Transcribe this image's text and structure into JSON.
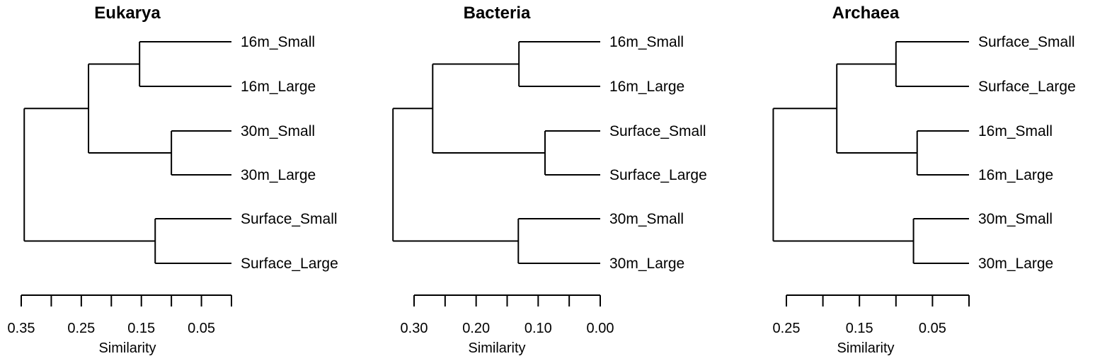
{
  "chart_data": [
    {
      "type": "dendrogram",
      "title": "Eukarya",
      "xlabel": "Similarity",
      "xlim": [
        0.35,
        0.0
      ],
      "ticks": [
        0.35,
        0.3,
        0.25,
        0.2,
        0.15,
        0.1,
        0.05,
        0.0
      ],
      "tick_labels": [
        "0.35",
        "0.25",
        "0.15",
        "0.05"
      ],
      "tick_label_values": [
        0.35,
        0.25,
        0.15,
        0.05
      ],
      "leaves": [
        "16m_Small",
        "16m_Large",
        "30m_Small",
        "30m_Large",
        "Surface_Small",
        "Surface_Large"
      ],
      "merges": [
        {
          "a": "L0",
          "b": "L1",
          "height": 0.153
        },
        {
          "a": "L2",
          "b": "L3",
          "height": 0.1
        },
        {
          "a": "L4",
          "b": "L5",
          "height": 0.127
        },
        {
          "a": "M0",
          "b": "M1",
          "height": 0.238
        },
        {
          "a": "M3",
          "b": "M2",
          "height": 0.345
        }
      ]
    },
    {
      "type": "dendrogram",
      "title": "Bacteria",
      "xlabel": "Similarity",
      "xlim": [
        0.3,
        0.0
      ],
      "ticks": [
        0.3,
        0.25,
        0.2,
        0.15,
        0.1,
        0.05,
        0.0
      ],
      "tick_labels": [
        "0.30",
        "0.20",
        "0.10",
        "0.00"
      ],
      "tick_label_values": [
        0.3,
        0.2,
        0.1,
        0.0
      ],
      "leaves": [
        "16m_Small",
        "16m_Large",
        "Surface_Small",
        "Surface_Large",
        "30m_Small",
        "30m_Large"
      ],
      "merges": [
        {
          "a": "L0",
          "b": "L1",
          "height": 0.131
        },
        {
          "a": "L2",
          "b": "L3",
          "height": 0.089
        },
        {
          "a": "L4",
          "b": "L5",
          "height": 0.132
        },
        {
          "a": "M0",
          "b": "M1",
          "height": 0.27
        },
        {
          "a": "M3",
          "b": "M2",
          "height": 0.334
        }
      ]
    },
    {
      "type": "dendrogram",
      "title": "Archaea",
      "xlabel": "Similarity",
      "xlim": [
        0.25,
        0.0
      ],
      "ticks": [
        0.25,
        0.2,
        0.15,
        0.1,
        0.05,
        0.0
      ],
      "tick_labels": [
        "0.25",
        "0.15",
        "0.05"
      ],
      "tick_label_values": [
        0.25,
        0.15,
        0.05
      ],
      "leaves": [
        "Surface_Small",
        "Surface_Large",
        "16m_Small",
        "16m_Large",
        "30m_Small",
        "30m_Large"
      ],
      "merges": [
        {
          "a": "L0",
          "b": "L1",
          "height": 0.1
        },
        {
          "a": "L2",
          "b": "L3",
          "height": 0.071
        },
        {
          "a": "L4",
          "b": "L5",
          "height": 0.076
        },
        {
          "a": "M0",
          "b": "M1",
          "height": 0.181
        },
        {
          "a": "M3",
          "b": "M2",
          "height": 0.268
        }
      ]
    }
  ]
}
